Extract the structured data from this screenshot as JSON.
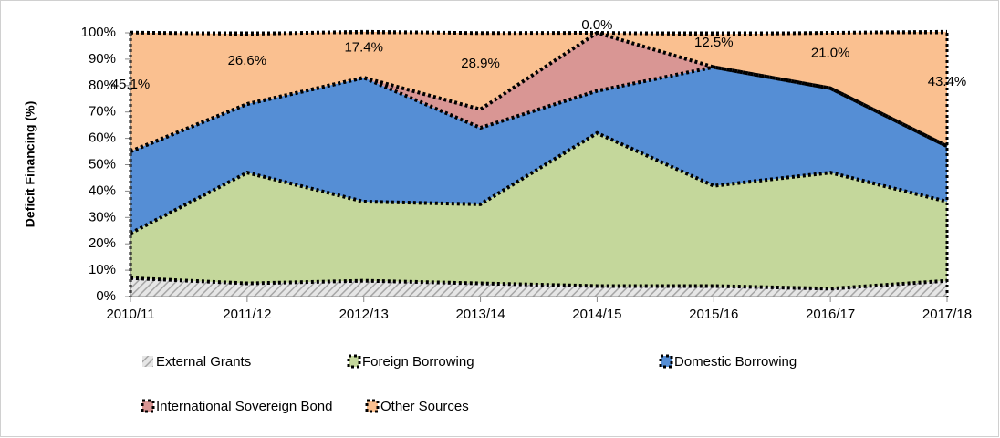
{
  "chart_data": {
    "type": "stacked-area",
    "y_label": "Deficit Financing (%)",
    "categories": [
      "2010/11",
      "2011/12",
      "2012/13",
      "2013/14",
      "2014/15",
      "2015/16",
      "2016/17",
      "2017/18"
    ],
    "series": [
      {
        "name": "External Grants",
        "color": "#a6a6a6",
        "values": [
          7,
          5,
          6,
          5,
          4,
          4,
          3,
          6
        ]
      },
      {
        "name": "Foreign Borrowing",
        "color": "#c4d79b",
        "values": [
          17,
          42,
          30,
          30,
          58,
          38,
          44,
          30
        ]
      },
      {
        "name": "Domestic Borrowing",
        "color": "#558ed5",
        "values": [
          31,
          26,
          47,
          29,
          16,
          45,
          32,
          21
        ]
      },
      {
        "name": "International Sovereign Bond",
        "color": "#d99694",
        "values": [
          0,
          0,
          0,
          7,
          22,
          0,
          0,
          0
        ]
      },
      {
        "name": "Other Sources",
        "color": "#fac090",
        "values": [
          45.1,
          26.6,
          17.4,
          28.9,
          0.0,
          12.5,
          21.0,
          43.4
        ],
        "value_labels": [
          "45.1%",
          "26.6%",
          "17.4%",
          "28.9%",
          "0.0%",
          "12.5%",
          "21.0%",
          "43.4%"
        ]
      }
    ],
    "ylim": [
      0,
      100
    ],
    "yticks": [
      {
        "value": 0,
        "label": "0%"
      },
      {
        "value": 10,
        "label": "10%"
      },
      {
        "value": 20,
        "label": "20%"
      },
      {
        "value": 30,
        "label": "30%"
      },
      {
        "value": 40,
        "label": "40%"
      },
      {
        "value": 50,
        "label": "50%"
      },
      {
        "value": 60,
        "label": "60%"
      },
      {
        "value": 70,
        "label": "70%"
      },
      {
        "value": 80,
        "label": "80%"
      },
      {
        "value": 90,
        "label": "90%"
      },
      {
        "value": 100,
        "label": "100%"
      }
    ]
  }
}
